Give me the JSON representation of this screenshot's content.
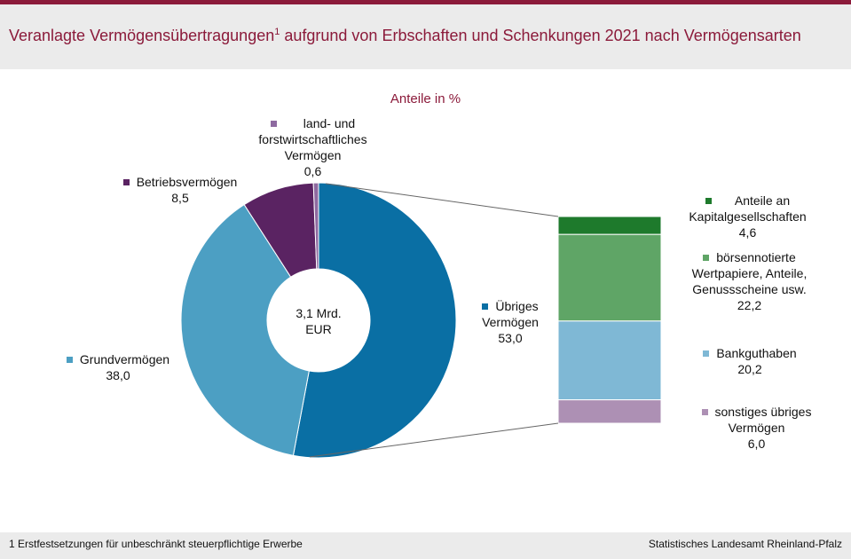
{
  "header": {
    "title_main": "Veranlagte Vermögensübertragungen",
    "title_sup": "1",
    "title_rest": " aufgrund von Erbschaften und Schenkungen 2021 nach Vermögensarten"
  },
  "subtitle": "Anteile in %",
  "footnote": "1 Erstfestsetzungen für unbeschränkt steuerpflichtige Erwerbe",
  "source": "Statistisches Landesamt Rheinland-Pfalz",
  "chart_data": [
    {
      "type": "pie",
      "variant": "donut",
      "title": "Anteile in %",
      "center_label": [
        "3,1 Mrd.",
        "EUR"
      ],
      "slices": [
        {
          "label": "Übriges Vermögen",
          "value": 53.0,
          "value_text": "53,0",
          "color": "#0a6fa4"
        },
        {
          "label": "Grundvermögen",
          "value": 38.0,
          "value_text": "38,0",
          "color": "#4c9fc3"
        },
        {
          "label": "Betriebsvermögen",
          "value": 8.5,
          "value_text": "8,5",
          "color": "#5a2362"
        },
        {
          "label": "land- und forstwirtschaftliches Vermögen",
          "value": 0.6,
          "value_text": "0,6",
          "color": "#8e6aa0"
        }
      ]
    },
    {
      "type": "bar",
      "variant": "stacked-100",
      "title": "Übriges Vermögen",
      "segments": [
        {
          "label": "Anteile an Kapitalgesellschaften",
          "value": 4.6,
          "value_text": "4,6",
          "color": "#1e7a2c"
        },
        {
          "label": "börsennotierte Wertpapiere, Anteile, Genussscheine usw.",
          "value": 22.2,
          "value_text": "22,2",
          "color": "#5fa566"
        },
        {
          "label": "Bankguthaben",
          "value": 20.2,
          "value_text": "20,2",
          "color": "#7fb8d5"
        },
        {
          "label": "sonstiges übriges Vermögen",
          "value": 6.0,
          "value_text": "6,0",
          "color": "#ad90b4"
        }
      ]
    }
  ],
  "labels": {
    "forst": {
      "line1": "land- und",
      "line2": "forstwirtschaftliches",
      "line3": "Vermögen",
      "value": "0,6"
    },
    "betrieb": {
      "name": "Betriebsvermögen",
      "value": "8,5"
    },
    "grund": {
      "name": "Grundvermögen",
      "value": "38,0"
    },
    "uebrig": {
      "line1": "Übriges",
      "line2": "Vermögen",
      "value": "53,0"
    },
    "kapital": {
      "line1": "Anteile an",
      "line2": "Kapitalgesellschaften",
      "value": "4,6"
    },
    "boerse": {
      "line1": "börsennotierte",
      "line2": "Wertpapiere, Anteile,",
      "line3": "Genussscheine  usw.",
      "value": "22,2"
    },
    "bank": {
      "name": "Bankguthaben",
      "value": "20,2"
    },
    "sonst": {
      "line1": "sonstiges übriges",
      "line2": "Vermögen",
      "value": "6,0"
    }
  }
}
